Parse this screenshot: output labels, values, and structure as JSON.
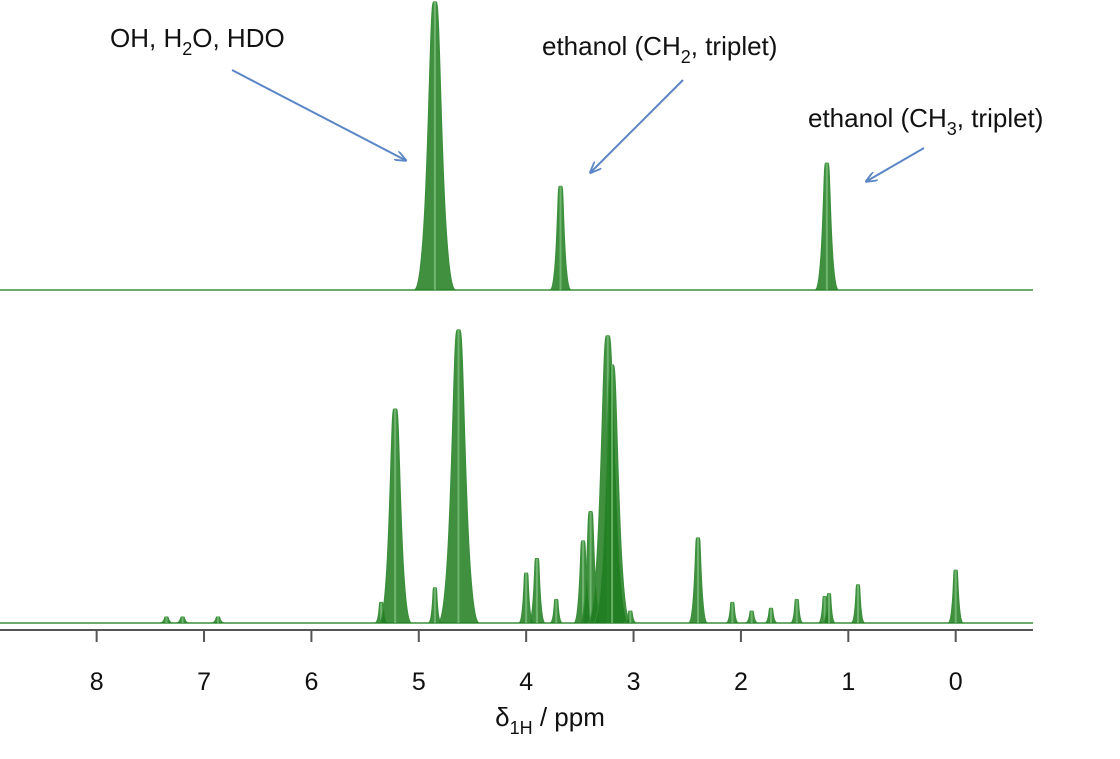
{
  "chart_data": [
    {
      "type": "line",
      "title": "",
      "xlabel": "",
      "ylabel": "",
      "x_reversed": true,
      "xlim": [
        8.9,
        -0.72
      ],
      "line_color": "#3a8f3a",
      "peak_color": "#1e7d1e",
      "peaks": [
        {
          "x": 4.85,
          "y": 1.0
        },
        {
          "x": 3.68,
          "y": 0.36
        },
        {
          "x": 1.2,
          "y": 0.44
        }
      ],
      "annotations": [
        {
          "id": "water",
          "text_parts": [
            "OH, H",
            "2",
            "O, HDO"
          ],
          "target_x": 4.85
        },
        {
          "id": "ch2",
          "text_parts": [
            "ethanol (CH",
            "2",
            ", triplet)"
          ],
          "target_x": 3.68
        },
        {
          "id": "ch3",
          "text_parts": [
            "ethanol (CH",
            "3",
            ", triplet)"
          ],
          "target_x": 1.2
        }
      ],
      "arrow_color": "#5b86c5"
    },
    {
      "type": "line",
      "title": "",
      "x_reversed": true,
      "xlim": [
        8.9,
        -0.72
      ],
      "xticks": [
        "8",
        "7",
        "6",
        "5",
        "4",
        "3",
        "2",
        "1",
        "0"
      ],
      "xtick_values": [
        8,
        7,
        6,
        5,
        4,
        3,
        2,
        1,
        0
      ],
      "xlabel_parts": [
        "δ",
        "1H",
        " / ppm"
      ],
      "peaks": [
        {
          "x": 7.35,
          "y": 0.02
        },
        {
          "x": 7.2,
          "y": 0.02
        },
        {
          "x": 6.87,
          "y": 0.02
        },
        {
          "x": 5.35,
          "y": 0.07
        },
        {
          "x": 5.22,
          "y": 0.73
        },
        {
          "x": 4.85,
          "y": 0.12
        },
        {
          "x": 4.63,
          "y": 1.0
        },
        {
          "x": 4.0,
          "y": 0.17
        },
        {
          "x": 3.9,
          "y": 0.22
        },
        {
          "x": 3.72,
          "y": 0.08
        },
        {
          "x": 3.47,
          "y": 0.28
        },
        {
          "x": 3.4,
          "y": 0.38
        },
        {
          "x": 3.24,
          "y": 0.98
        },
        {
          "x": 3.2,
          "y": 0.88
        },
        {
          "x": 3.03,
          "y": 0.04
        },
        {
          "x": 2.4,
          "y": 0.29
        },
        {
          "x": 2.08,
          "y": 0.07
        },
        {
          "x": 1.9,
          "y": 0.04
        },
        {
          "x": 1.72,
          "y": 0.05
        },
        {
          "x": 1.48,
          "y": 0.08
        },
        {
          "x": 1.22,
          "y": 0.09
        },
        {
          "x": 1.18,
          "y": 0.1
        },
        {
          "x": 0.91,
          "y": 0.13
        },
        {
          "x": 0.0,
          "y": 0.18
        }
      ]
    }
  ]
}
